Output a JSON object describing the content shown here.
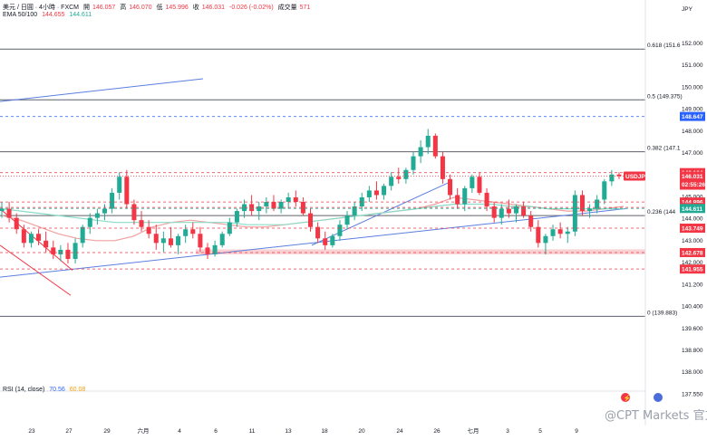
{
  "header": {
    "symbol": "美元 / 日圓 · 4小時 · FXCM",
    "open_label": "開",
    "open": "146.057",
    "high_label": "高",
    "high": "146.070",
    "low_label": "低",
    "low": "145.996",
    "close_label": "收",
    "close": "146.031",
    "change": "-0.026 (-0.02%)",
    "volume_label": "成交量",
    "volume": "571",
    "ema_label": "EMA 50/100",
    "ema50": "144.655",
    "ema100": "144.611"
  },
  "rsi": {
    "label": "RSI (14, close)",
    "value": "70.56",
    "ma": "60.08"
  },
  "currency": "JPY",
  "watermark": "@CPT Markets 官方",
  "colors": {
    "up": "#22ab94",
    "down": "#f23645",
    "ema50": "#f2a0a0",
    "ema100": "#89dcc8",
    "trendline": "#5b7fe0",
    "fib": "#5d606b",
    "accent_blue": "#2962ff"
  },
  "chart_data": {
    "type": "candlestick",
    "ylim": [
      137.0,
      152.8
    ],
    "y_ticks": [
      "152.000",
      "151.000",
      "150.000",
      "149.000",
      "148.000",
      "147.000",
      "146.000",
      "145.000",
      "144.000",
      "143.000",
      "142.000",
      "141.200",
      "140.400",
      "139.600",
      "138.800",
      "138.000",
      "137.550"
    ],
    "x_ticks": [
      "23",
      "27",
      "29",
      "六月",
      "4",
      "6",
      "11",
      "13",
      "18",
      "20",
      "24",
      "26",
      "七月",
      "3",
      "5",
      "9"
    ],
    "fib_levels": [
      {
        "label": "0.618 (151.6",
        "value": 151.6
      },
      {
        "label": "0.5 (149.375)",
        "value": 149.375
      },
      {
        "label": "0.382 (147.1",
        "value": 147.1
      },
      {
        "label": "0.236 (144",
        "value": 144.3
      },
      {
        "label": "0 (139.883)",
        "value": 139.883
      }
    ],
    "price_tags": [
      {
        "label": "148.647",
        "value": 148.647,
        "color": "#2962ff"
      },
      {
        "label": "146.184",
        "value": 146.184,
        "color": "#f23645"
      },
      {
        "label": "USDJPY",
        "value": 146.031,
        "color": "#f23645",
        "sub": "146.031",
        "sub2": "02:55:26"
      },
      {
        "label": "144.896",
        "value": 144.896,
        "color": "#f23645"
      },
      {
        "label": "144.655",
        "value": 144.655,
        "color": "#f23645"
      },
      {
        "label": "144.611",
        "value": 144.611,
        "color": "#22ab94"
      },
      {
        "label": "143.749",
        "value": 143.749,
        "color": "#f23645"
      },
      {
        "label": "142.678",
        "value": 142.678,
        "color": "#f23645"
      },
      {
        "label": "141.955",
        "value": 141.955,
        "color": "#f23645"
      }
    ],
    "support_zone": [
      142.6,
      142.82
    ],
    "series": [
      {
        "name": "EMA 50",
        "values": [
          144.3,
          144.1,
          143.8,
          143.5,
          143.3,
          143.2,
          143.2,
          143.4,
          143.8,
          144.0,
          144.1,
          144.0,
          143.9,
          143.8,
          143.8,
          143.9,
          144.0,
          144.1,
          144.2,
          144.3,
          144.4,
          144.5,
          144.6,
          144.8,
          145.1,
          145.0,
          144.9,
          144.8,
          144.7,
          144.6,
          144.5,
          144.5,
          144.6,
          144.7
        ]
      },
      {
        "name": "EMA 100",
        "values": [
          144.6,
          144.5,
          144.4,
          144.3,
          144.2,
          144.1,
          144.0,
          144.0,
          144.0,
          144.0,
          144.0,
          144.0,
          144.0,
          143.9,
          143.9,
          143.9,
          144.0,
          144.1,
          144.2,
          144.3,
          144.4,
          144.5,
          144.6,
          144.7,
          144.8,
          144.8,
          144.8,
          144.7,
          144.7,
          144.6,
          144.6,
          144.6,
          144.6,
          144.6
        ]
      }
    ],
    "candles": [
      [
        144.5,
        144.9,
        144.2,
        144.6
      ],
      [
        144.6,
        144.9,
        144.0,
        144.2
      ],
      [
        144.2,
        144.4,
        143.5,
        143.7
      ],
      [
        143.7,
        143.9,
        142.9,
        143.1
      ],
      [
        143.1,
        143.6,
        142.9,
        143.5
      ],
      [
        143.5,
        143.7,
        143.0,
        143.2
      ],
      [
        143.2,
        143.6,
        142.7,
        142.9
      ],
      [
        142.9,
        143.2,
        142.4,
        142.6
      ],
      [
        142.6,
        143.0,
        142.3,
        142.8
      ],
      [
        142.8,
        143.1,
        142.2,
        142.4
      ],
      [
        142.4,
        143.3,
        142.2,
        143.1
      ],
      [
        143.1,
        143.9,
        142.9,
        143.8
      ],
      [
        143.8,
        144.4,
        143.5,
        144.2
      ],
      [
        144.2,
        144.6,
        143.9,
        144.4
      ],
      [
        144.4,
        144.8,
        144.1,
        144.6
      ],
      [
        144.6,
        145.5,
        144.4,
        145.3
      ],
      [
        145.3,
        146.2,
        145.0,
        146.0
      ],
      [
        146.0,
        146.3,
        144.6,
        144.8
      ],
      [
        144.8,
        145.0,
        143.9,
        144.1
      ],
      [
        144.1,
        144.5,
        143.6,
        143.8
      ],
      [
        143.8,
        144.1,
        143.3,
        143.5
      ],
      [
        143.5,
        143.9,
        142.8,
        143.1
      ],
      [
        143.1,
        143.6,
        142.7,
        143.3
      ],
      [
        143.3,
        143.8,
        142.9,
        143.0
      ],
      [
        143.0,
        143.5,
        142.6,
        143.4
      ],
      [
        143.4,
        143.9,
        143.1,
        143.7
      ],
      [
        143.7,
        144.0,
        143.3,
        143.5
      ],
      [
        143.5,
        143.8,
        142.7,
        142.9
      ],
      [
        142.9,
        143.1,
        142.4,
        142.6
      ],
      [
        142.6,
        143.2,
        142.5,
        143.0
      ],
      [
        143.0,
        143.6,
        142.9,
        143.5
      ],
      [
        143.5,
        144.2,
        143.4,
        144.0
      ],
      [
        144.0,
        144.6,
        143.8,
        144.5
      ],
      [
        144.5,
        145.0,
        144.2,
        144.8
      ],
      [
        144.8,
        145.2,
        144.3,
        144.5
      ],
      [
        144.5,
        144.9,
        144.1,
        144.7
      ],
      [
        144.7,
        145.1,
        144.4,
        144.9
      ],
      [
        144.9,
        145.2,
        144.5,
        144.6
      ],
      [
        144.6,
        145.0,
        144.4,
        144.9
      ],
      [
        144.9,
        145.3,
        144.6,
        145.1
      ],
      [
        145.1,
        145.4,
        144.7,
        144.9
      ],
      [
        144.9,
        145.1,
        144.3,
        144.4
      ],
      [
        144.4,
        144.6,
        143.6,
        143.8
      ],
      [
        143.8,
        144.0,
        143.1,
        143.3
      ],
      [
        143.3,
        143.6,
        142.8,
        143.0
      ],
      [
        143.0,
        143.5,
        142.9,
        143.4
      ],
      [
        143.4,
        144.1,
        143.2,
        143.9
      ],
      [
        143.9,
        144.5,
        143.7,
        144.3
      ],
      [
        144.3,
        144.9,
        144.1,
        144.7
      ],
      [
        144.7,
        145.3,
        144.5,
        145.1
      ],
      [
        145.1,
        145.6,
        144.9,
        145.4
      ],
      [
        145.4,
        145.8,
        145.0,
        145.2
      ],
      [
        145.2,
        145.7,
        145.0,
        145.6
      ],
      [
        145.6,
        146.2,
        145.4,
        146.0
      ],
      [
        146.0,
        146.4,
        145.7,
        145.9
      ],
      [
        145.9,
        146.4,
        145.7,
        146.3
      ],
      [
        146.3,
        147.1,
        146.1,
        146.9
      ],
      [
        146.9,
        147.6,
        146.6,
        147.3
      ],
      [
        147.3,
        148.1,
        147.0,
        147.8
      ],
      [
        147.8,
        147.9,
        146.8,
        146.9
      ],
      [
        146.9,
        147.1,
        145.7,
        145.9
      ],
      [
        145.9,
        146.1,
        145.0,
        145.2
      ],
      [
        145.2,
        145.5,
        144.6,
        144.8
      ],
      [
        144.8,
        145.6,
        144.5,
        145.5
      ],
      [
        145.5,
        146.1,
        145.3,
        146.0
      ],
      [
        146.0,
        146.2,
        145.2,
        145.3
      ],
      [
        145.3,
        145.5,
        144.5,
        144.7
      ],
      [
        144.7,
        144.9,
        144.0,
        144.2
      ],
      [
        144.2,
        144.8,
        143.9,
        144.6
      ],
      [
        144.6,
        145.0,
        144.2,
        144.4
      ],
      [
        144.4,
        144.8,
        144.0,
        144.7
      ],
      [
        144.7,
        144.9,
        144.2,
        144.3
      ],
      [
        144.3,
        144.5,
        143.6,
        143.8
      ],
      [
        143.8,
        144.1,
        142.9,
        143.1
      ],
      [
        143.1,
        143.5,
        142.6,
        143.4
      ],
      [
        143.4,
        143.9,
        143.2,
        143.7
      ],
      [
        143.7,
        144.0,
        143.3,
        143.5
      ],
      [
        143.5,
        143.8,
        143.1,
        143.6
      ],
      [
        143.6,
        145.4,
        143.4,
        145.2
      ],
      [
        145.2,
        145.4,
        144.3,
        144.5
      ],
      [
        144.5,
        144.8,
        144.2,
        144.6
      ],
      [
        144.6,
        145.2,
        144.4,
        145.0
      ],
      [
        145.0,
        145.9,
        144.8,
        145.8
      ],
      [
        145.8,
        146.3,
        145.6,
        146.1
      ],
      [
        146.1,
        146.2,
        145.9,
        146.03
      ]
    ]
  }
}
